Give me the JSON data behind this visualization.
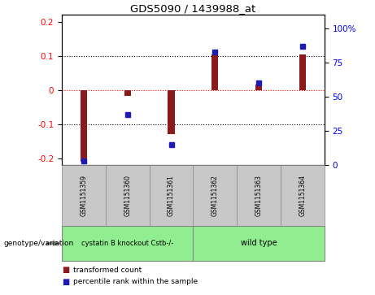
{
  "title": "GDS5090 / 1439988_at",
  "samples": [
    "GSM1151359",
    "GSM1151360",
    "GSM1151361",
    "GSM1151362",
    "GSM1151363",
    "GSM1151364"
  ],
  "bar_values": [
    -0.21,
    -0.018,
    -0.13,
    0.105,
    0.015,
    0.105
  ],
  "percentile_values": [
    3,
    37,
    15,
    83,
    60,
    87
  ],
  "ylim_left": [
    -0.22,
    0.22
  ],
  "ylim_right": [
    0,
    110
  ],
  "yticks_left": [
    -0.2,
    -0.1,
    0.0,
    0.1,
    0.2
  ],
  "yticks_right": [
    0,
    25,
    50,
    75,
    100
  ],
  "ytick_labels_left": [
    "-0.2",
    "-0.1",
    "0",
    "0.1",
    "0.2"
  ],
  "ytick_labels_right": [
    "0",
    "25",
    "50",
    "75",
    "100%"
  ],
  "bar_color": "#8B1A1A",
  "dot_color": "#1C1CB5",
  "hline_red": 0.0,
  "dotted_lines": [
    -0.1,
    0.1
  ],
  "legend_items": [
    "transformed count",
    "percentile rank within the sample"
  ],
  "genotype_label": "genotype/variation",
  "group1_label": "cystatin B knockout Cstb-/-",
  "group2_label": "wild type",
  "group1_color": "#90EE90",
  "group2_color": "#90EE90",
  "sample_box_color": "#C8C8C8",
  "bar_width": 0.15
}
